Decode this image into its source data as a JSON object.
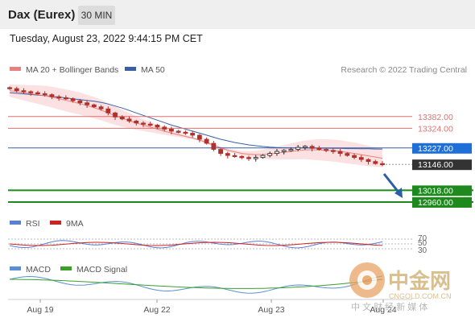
{
  "header": {
    "instrument": "Dax (Eurex)",
    "timeframe": "30 MIN"
  },
  "timestamp": "Tuesday, August 23, 2022 9:44:15 PM CET",
  "legend": {
    "ma20": "MA 20 + Bollinger Bands",
    "ma50": "MA 50",
    "credit": "Research © 2022 Trading Central",
    "rsi": "RSI",
    "rsi_ma": "9MA",
    "macd": "MACD",
    "macd_signal": "MACD Signal"
  },
  "colors": {
    "ma20": "#e98080",
    "ma50": "#3a5fa8",
    "resistance": "#e07070",
    "support": "#1e8a1e",
    "pivot": "#1e6fd8",
    "last_price": "#333333",
    "bullish_candle": "#222222",
    "bearish_candle": "#b0302a",
    "rsi": "#5a7fd6",
    "rsi_ma": "#cc2222",
    "macd": "#5a8fd6",
    "macd_signal": "#3aa02a"
  },
  "watermark": {
    "brand": "中金网",
    "domain": "CNGOLD.COM.CN",
    "tagline": "中 文 财 经 新 媒 体"
  },
  "chart_data": {
    "type": "candlestick",
    "title": "Dax (Eurex)",
    "ylim": [
      12960,
      13560
    ],
    "x_ticks": [
      "Aug 19",
      "Aug 22",
      "Aug 23",
      "Aug 24"
    ],
    "levels": [
      {
        "label": "13382.00",
        "value": 13382,
        "kind": "resistance"
      },
      {
        "label": "13324.00",
        "value": 13324,
        "kind": "resistance"
      },
      {
        "label": "13227.00",
        "value": 13227,
        "kind": "pivot"
      },
      {
        "label": "13146.00",
        "value": 13146,
        "kind": "last"
      },
      {
        "label": "13018.00",
        "value": 13018,
        "kind": "support"
      },
      {
        "label": "12960.00",
        "value": 12960,
        "kind": "support"
      }
    ],
    "close_series": [
      13520,
      13510,
      13505,
      13500,
      13495,
      13490,
      13480,
      13475,
      13470,
      13460,
      13450,
      13440,
      13430,
      13420,
      13400,
      13380,
      13370,
      13360,
      13350,
      13345,
      13340,
      13330,
      13320,
      13310,
      13305,
      13300,
      13290,
      13270,
      13250,
      13220,
      13200,
      13190,
      13185,
      13180,
      13175,
      13180,
      13190,
      13200,
      13210,
      13215,
      13220,
      13230,
      13235,
      13225,
      13220,
      13215,
      13210,
      13200,
      13190,
      13180,
      13170,
      13160,
      13150,
      13146
    ],
    "ma20_series": [
      13510,
      13505,
      13500,
      13495,
      13490,
      13485,
      13478,
      13470,
      13462,
      13454,
      13446,
      13436,
      13426,
      13414,
      13400,
      13386,
      13374,
      13362,
      13350,
      13340,
      13330,
      13320,
      13310,
      13300,
      13292,
      13284,
      13276,
      13266,
      13254,
      13240,
      13228,
      13216,
      13208,
      13200,
      13196,
      13194,
      13195,
      13198,
      13202,
      13206,
      13210,
      13214,
      13218,
      13218,
      13218,
      13216,
      13214,
      13210,
      13205,
      13200,
      13194,
      13188,
      13182,
      13176
    ],
    "ma50_series": [
      13500,
      13497,
      13494,
      13491,
      13488,
      13485,
      13482,
      13478,
      13474,
      13470,
      13466,
      13462,
      13458,
      13452,
      13444,
      13434,
      13424,
      13412,
      13400,
      13388,
      13376,
      13364,
      13352,
      13340,
      13330,
      13320,
      13310,
      13300,
      13290,
      13280,
      13270,
      13262,
      13254,
      13248,
      13242,
      13238,
      13234,
      13231,
      13229,
      13228,
      13227,
      13227,
      13227,
      13227,
      13226,
      13226,
      13225,
      13225,
      13224,
      13224,
      13223,
      13223,
      13222,
      13222
    ],
    "rsi": {
      "levels": [
        70,
        50,
        30
      ]
    }
  }
}
